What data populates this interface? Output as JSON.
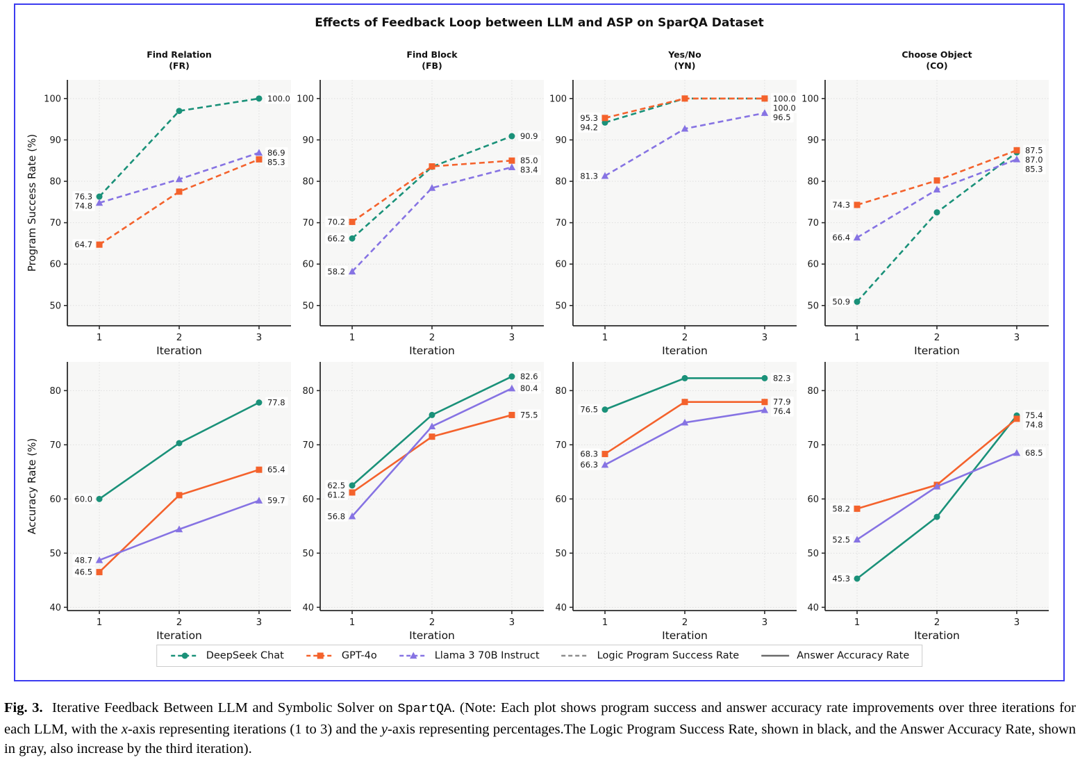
{
  "figure": {
    "title": "Effects of Feedback Loop between LLM and ASP on SparQA Dataset",
    "frame_color": "#3B3BF0",
    "legend": [
      {
        "label": "DeepSeek Chat",
        "color": "#1A9179",
        "marker": "circle",
        "dash": true
      },
      {
        "label": "GPT-4o",
        "color": "#F4622C",
        "marker": "square",
        "dash": true
      },
      {
        "label": "Llama 3 70B Instruct",
        "color": "#8673E3",
        "marker": "triangle",
        "dash": true
      },
      {
        "label": "Logic Program Success Rate",
        "color": "#8C8C8C",
        "marker": "none",
        "dash": true
      },
      {
        "label": "Answer Accuracy Rate",
        "color": "#6B6B6B",
        "marker": "none",
        "dash": false
      }
    ]
  },
  "chart_data": {
    "type": "line",
    "x": [
      1,
      2,
      3
    ],
    "xlabel": "Iteration",
    "grid": true,
    "models": [
      {
        "name": "DeepSeek Chat",
        "color": "#1A9179",
        "marker": "circle"
      },
      {
        "name": "GPT-4o",
        "color": "#F4622C",
        "marker": "square"
      },
      {
        "name": "Llama 3 70B Instruct",
        "color": "#8673E3",
        "marker": "triangle"
      }
    ],
    "columns": [
      {
        "id": "fr",
        "title": "Find Relation",
        "abbr": "(FR)"
      },
      {
        "id": "fb",
        "title": "Find Block",
        "abbr": "(FB)"
      },
      {
        "id": "yn",
        "title": "Yes/No",
        "abbr": "(YN)"
      },
      {
        "id": "co",
        "title": "Choose Object",
        "abbr": "(CO)"
      }
    ],
    "rows": [
      {
        "id": "success",
        "ylabel": "Program Success Rate (%)",
        "ylim": [
          45.1,
          104.5
        ],
        "yticks": [
          50,
          60,
          70,
          80,
          90,
          100
        ],
        "line_style": "dashed",
        "panels": [
          {
            "column": "fr",
            "series": [
              [
                76.3,
                97.0,
                100.0
              ],
              [
                64.7,
                77.5,
                85.3
              ],
              [
                74.8,
                80.5,
                86.9
              ]
            ]
          },
          {
            "column": "fb",
            "series": [
              [
                66.2,
                83.5,
                90.9
              ],
              [
                70.2,
                83.6,
                85.0
              ],
              [
                58.2,
                78.4,
                83.4
              ]
            ]
          },
          {
            "column": "yn",
            "series": [
              [
                94.2,
                100.0,
                100.0
              ],
              [
                95.3,
                100.0,
                100.0
              ],
              [
                81.3,
                92.7,
                96.5
              ]
            ]
          },
          {
            "column": "co",
            "series": [
              [
                50.9,
                72.5,
                87.0
              ],
              [
                74.3,
                80.2,
                87.5
              ],
              [
                66.4,
                78.0,
                85.3
              ]
            ]
          }
        ]
      },
      {
        "id": "accuracy",
        "ylabel": "Accuracy Rate (%)",
        "ylim": [
          39.4,
          85.3
        ],
        "yticks": [
          40,
          50,
          60,
          70,
          80
        ],
        "line_style": "solid",
        "panels": [
          {
            "column": "fr",
            "series": [
              [
                60.0,
                70.3,
                77.8
              ],
              [
                46.5,
                60.7,
                65.4
              ],
              [
                48.7,
                54.4,
                59.7
              ]
            ]
          },
          {
            "column": "fb",
            "series": [
              [
                62.5,
                75.5,
                82.6
              ],
              [
                61.2,
                71.5,
                75.5
              ],
              [
                56.8,
                73.4,
                80.4
              ]
            ]
          },
          {
            "column": "yn",
            "series": [
              [
                76.5,
                82.3,
                82.3
              ],
              [
                68.3,
                77.9,
                77.9
              ],
              [
                66.3,
                74.1,
                76.4
              ]
            ]
          },
          {
            "column": "co",
            "series": [
              [
                45.3,
                56.7,
                75.4
              ],
              [
                58.2,
                62.6,
                74.8
              ],
              [
                52.5,
                62.3,
                68.5
              ]
            ]
          }
        ]
      }
    ]
  },
  "caption": {
    "segments": [
      {
        "text": "Fig. 3.",
        "style": "bold"
      },
      {
        "text": "  Iterative Feedback Between LLM and Symbolic Solver on ",
        "style": "normal"
      },
      {
        "text": "SpartQA",
        "style": "mono"
      },
      {
        "text": ". (Note: Each plot shows program success and answer accuracy rate improvements over three iterations for each LLM, with the ",
        "style": "normal"
      },
      {
        "text": "x",
        "style": "italic"
      },
      {
        "text": "-axis representing iterations (1 to 3) and the ",
        "style": "normal"
      },
      {
        "text": "y",
        "style": "italic"
      },
      {
        "text": "-axis representing percentages.The Logic Program Success Rate, shown in black, and the Answer Accuracy Rate, shown in gray, also increase by the third iteration).",
        "style": "normal"
      }
    ]
  }
}
